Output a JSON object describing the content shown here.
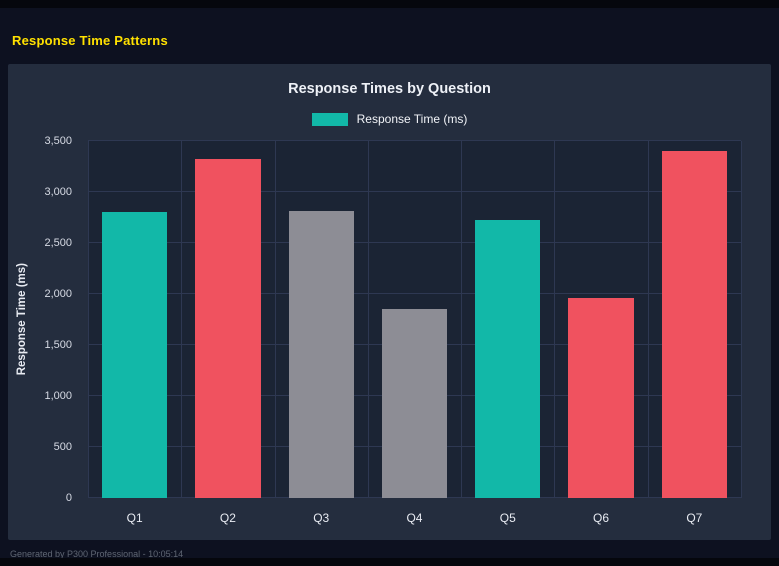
{
  "page": {
    "title": "Response Time Patterns",
    "footer": "Generated by P300 Professional - 10:05:14"
  },
  "chart": {
    "title": "Response Times by Question",
    "legend_label": "Response Time (ms)",
    "y_axis_label": "Response Time (ms)"
  },
  "chart_data": {
    "type": "bar",
    "title": "Response Times by Question",
    "categories": [
      "Q1",
      "Q2",
      "Q3",
      "Q4",
      "Q5",
      "Q6",
      "Q7"
    ],
    "values": [
      2800,
      3320,
      2810,
      1850,
      2730,
      1960,
      3400
    ],
    "bar_colors": [
      "#12b8a8",
      "#f0525f",
      "#8d8d95",
      "#8d8d95",
      "#12b8a8",
      "#f0525f",
      "#f0525f"
    ],
    "xlabel": "",
    "ylabel": "Response Time (ms)",
    "ylim": [
      0,
      3500
    ],
    "ytick_values": [
      0,
      500,
      1000,
      1500,
      2000,
      2500,
      3000,
      3500
    ],
    "ytick_labels": [
      "0",
      "500",
      "1,000",
      "1,500",
      "2,000",
      "2,500",
      "3,000",
      "3,500"
    ],
    "legend": [
      "Response Time (ms)"
    ],
    "legend_position": "top",
    "grid": true
  },
  "colors": {
    "accent_title": "#ffe100",
    "teal": "#12b8a8",
    "red": "#f0525f",
    "gray": "#8d8d95",
    "page_bg": "#0d1120",
    "panel_bg": "#242d3e",
    "plot_bg": "#1b2434",
    "grid": "#2e3852"
  }
}
